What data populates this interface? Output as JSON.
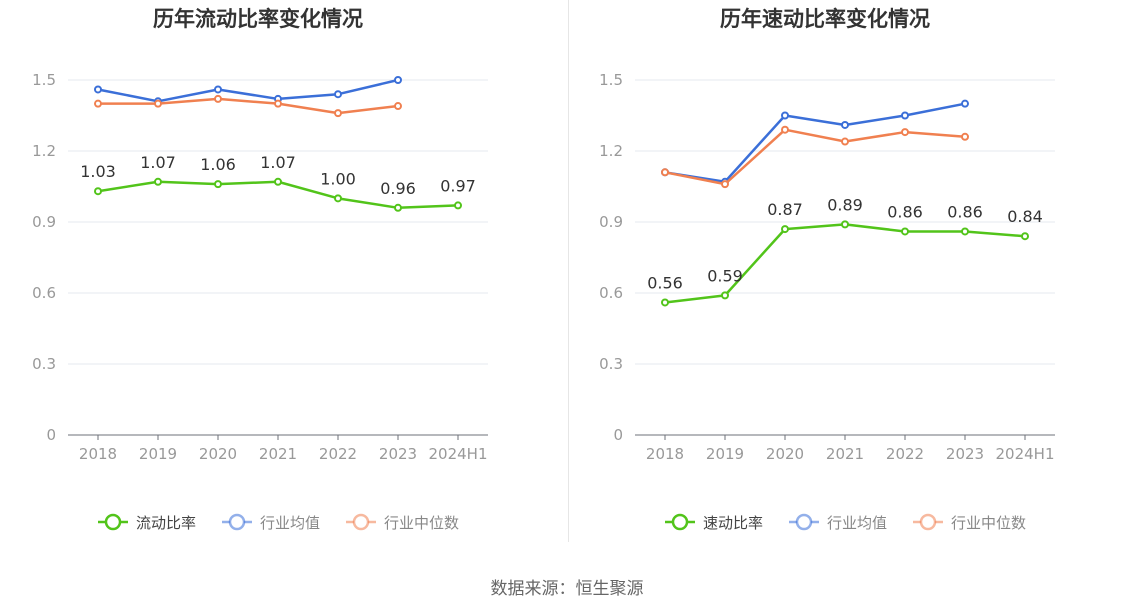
{
  "source_text": "数据来源：恒生聚源",
  "colors": {
    "green": "#52c41a",
    "blue": "#3b6fd8",
    "orange": "#f08050",
    "axis": "#999999",
    "grid": "#e6e9ef",
    "label": "#333333",
    "title": "#333333"
  },
  "chart_data": [
    {
      "type": "line",
      "title": "历年流动比率变化情况",
      "xlabel": "",
      "ylabel": "",
      "categories": [
        "2018",
        "2019",
        "2020",
        "2021",
        "2022",
        "2023",
        "2024H1"
      ],
      "yticks": [
        "0",
        "0.3",
        "0.6",
        "0.9",
        "1.2",
        "1.5"
      ],
      "ylim": [
        0,
        1.5
      ],
      "grid": true,
      "legend_position": "bottom",
      "series": [
        {
          "name": "流动比率",
          "color": "#52c41a",
          "values": [
            1.03,
            1.07,
            1.06,
            1.07,
            1.0,
            0.96,
            0.97
          ],
          "labels": [
            "1.03",
            "1.07",
            "1.06",
            "1.07",
            "1.00",
            "0.96",
            "0.97"
          ]
        },
        {
          "name": "行业均值",
          "color": "#3b6fd8",
          "values": [
            1.46,
            1.41,
            1.46,
            1.42,
            1.44,
            1.5,
            null
          ]
        },
        {
          "name": "行业中位数",
          "color": "#f08050",
          "values": [
            1.4,
            1.4,
            1.42,
            1.4,
            1.36,
            1.39,
            null
          ]
        }
      ]
    },
    {
      "type": "line",
      "title": "历年速动比率变化情况",
      "xlabel": "",
      "ylabel": "",
      "categories": [
        "2018",
        "2019",
        "2020",
        "2021",
        "2022",
        "2023",
        "2024H1"
      ],
      "yticks": [
        "0",
        "0.3",
        "0.6",
        "0.9",
        "1.2",
        "1.5"
      ],
      "ylim": [
        0,
        1.5
      ],
      "grid": true,
      "legend_position": "bottom",
      "series": [
        {
          "name": "速动比率",
          "color": "#52c41a",
          "values": [
            0.56,
            0.59,
            0.87,
            0.89,
            0.86,
            0.86,
            0.84
          ],
          "labels": [
            "0.56",
            "0.59",
            "0.87",
            "0.89",
            "0.86",
            "0.86",
            "0.84"
          ]
        },
        {
          "name": "行业均值",
          "color": "#3b6fd8",
          "values": [
            1.11,
            1.07,
            1.35,
            1.31,
            1.35,
            1.4,
            null
          ]
        },
        {
          "name": "行业中位数",
          "color": "#f08050",
          "values": [
            1.11,
            1.06,
            1.29,
            1.24,
            1.28,
            1.26,
            null
          ]
        }
      ]
    }
  ]
}
